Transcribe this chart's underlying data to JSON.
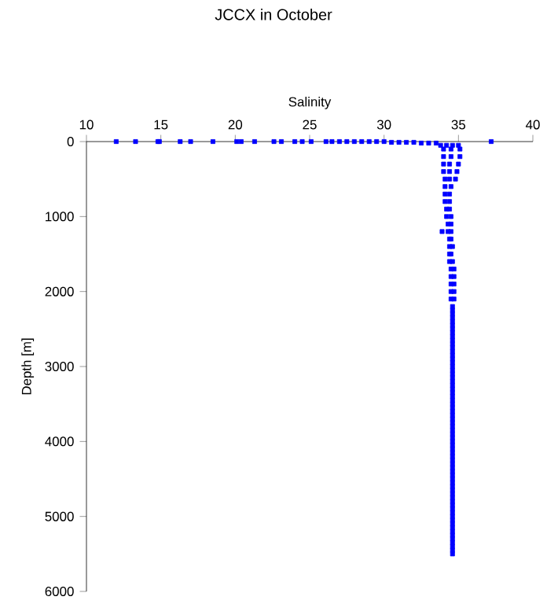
{
  "chart_data": {
    "type": "scatter",
    "title": "JCCX in October",
    "xlabel": "Salinity",
    "ylabel": "Depth [m]",
    "color": "#0000ff",
    "marker": "square",
    "xlim": [
      10,
      40
    ],
    "xticks": [
      10,
      15,
      20,
      25,
      30,
      35,
      40
    ],
    "ylim": [
      6000,
      0
    ],
    "yticks": [
      0,
      1000,
      2000,
      3000,
      4000,
      5000,
      6000
    ],
    "x": [
      12,
      13.3,
      14.8,
      14.9,
      16.3,
      17,
      18.5,
      20.1,
      20.4,
      21.3,
      22.6,
      23.1,
      24,
      24.5,
      25.1,
      26.1,
      26.5,
      27,
      27.5,
      28,
      28.5,
      29,
      29.5,
      30,
      37.2,
      30.5,
      31,
      31.5,
      32,
      32.5,
      33,
      33.5,
      33.8,
      34.2,
      34.6,
      35.0,
      34.0,
      34.5,
      35.1,
      34.0,
      34.5,
      35.1,
      34.0,
      34.4,
      35.0,
      34.0,
      34.4,
      34.9,
      34.1,
      34.4,
      34.8,
      34.1,
      34.5,
      34.1,
      34.4,
      34.1,
      34.4,
      34.2,
      34.4,
      34.2,
      34.5,
      34.3,
      34.5,
      33.9,
      34.3,
      34.5,
      34.4,
      34.5,
      34.4,
      34.6,
      34.4,
      34.5,
      34.4,
      34.6,
      34.5,
      34.7,
      34.5,
      34.7,
      34.5,
      34.7,
      34.5,
      34.7,
      34.5,
      34.7,
      34.6,
      34.6,
      34.6,
      34.6,
      34.6,
      34.6,
      34.6,
      34.6,
      34.6,
      34.6,
      34.6,
      34.6,
      34.6,
      34.6,
      34.6,
      34.6,
      34.6,
      34.6,
      34.6,
      34.6,
      34.6,
      34.6,
      34.6,
      34.6,
      34.6,
      34.6,
      34.6,
      34.6,
      34.6,
      34.6,
      34.6,
      34.6,
      34.6,
      34.6,
      34.6,
      34.6,
      34.6,
      34.6,
      34.6,
      34.6,
      34.6,
      34.6,
      34.6,
      34.6,
      34.6,
      34.6,
      34.6,
      34.6,
      34.6,
      34.6,
      34.6,
      34.6,
      34.6,
      34.6,
      34.6,
      34.6,
      34.6,
      34.6,
      34.6,
      34.6,
      34.6,
      34.6,
      34.6,
      34.6,
      34.6,
      34.6,
      34.6
    ],
    "values": [
      0,
      0,
      0,
      0,
      0,
      0,
      0,
      0,
      0,
      0,
      0,
      0,
      0,
      0,
      0,
      0,
      0,
      0,
      0,
      0,
      0,
      0,
      0,
      0,
      0,
      10,
      10,
      10,
      10,
      20,
      20,
      20,
      50,
      50,
      50,
      50,
      100,
      100,
      100,
      200,
      200,
      200,
      300,
      300,
      300,
      400,
      400,
      400,
      500,
      500,
      500,
      600,
      600,
      700,
      700,
      800,
      800,
      900,
      900,
      1000,
      1000,
      1100,
      1100,
      1200,
      1200,
      1200,
      1300,
      1300,
      1400,
      1400,
      1500,
      1500,
      1600,
      1600,
      1700,
      1700,
      1800,
      1800,
      1900,
      1900,
      2000,
      2000,
      2100,
      2100,
      2200,
      2250,
      2300,
      2350,
      2400,
      2450,
      2500,
      2550,
      2600,
      2650,
      2700,
      2750,
      2800,
      2850,
      2900,
      2950,
      3000,
      3050,
      3100,
      3150,
      3200,
      3250,
      3300,
      3350,
      3400,
      3450,
      3500,
      3550,
      3600,
      3650,
      3700,
      3750,
      3800,
      3850,
      3900,
      3950,
      4000,
      4050,
      4100,
      4150,
      4200,
      4250,
      4300,
      4350,
      4400,
      4450,
      4500,
      4550,
      4600,
      4650,
      4700,
      4750,
      4800,
      4850,
      4900,
      4950,
      5000,
      5050,
      5100,
      5150,
      5200,
      5250,
      5300,
      5350,
      5400,
      5450,
      5500
    ]
  }
}
